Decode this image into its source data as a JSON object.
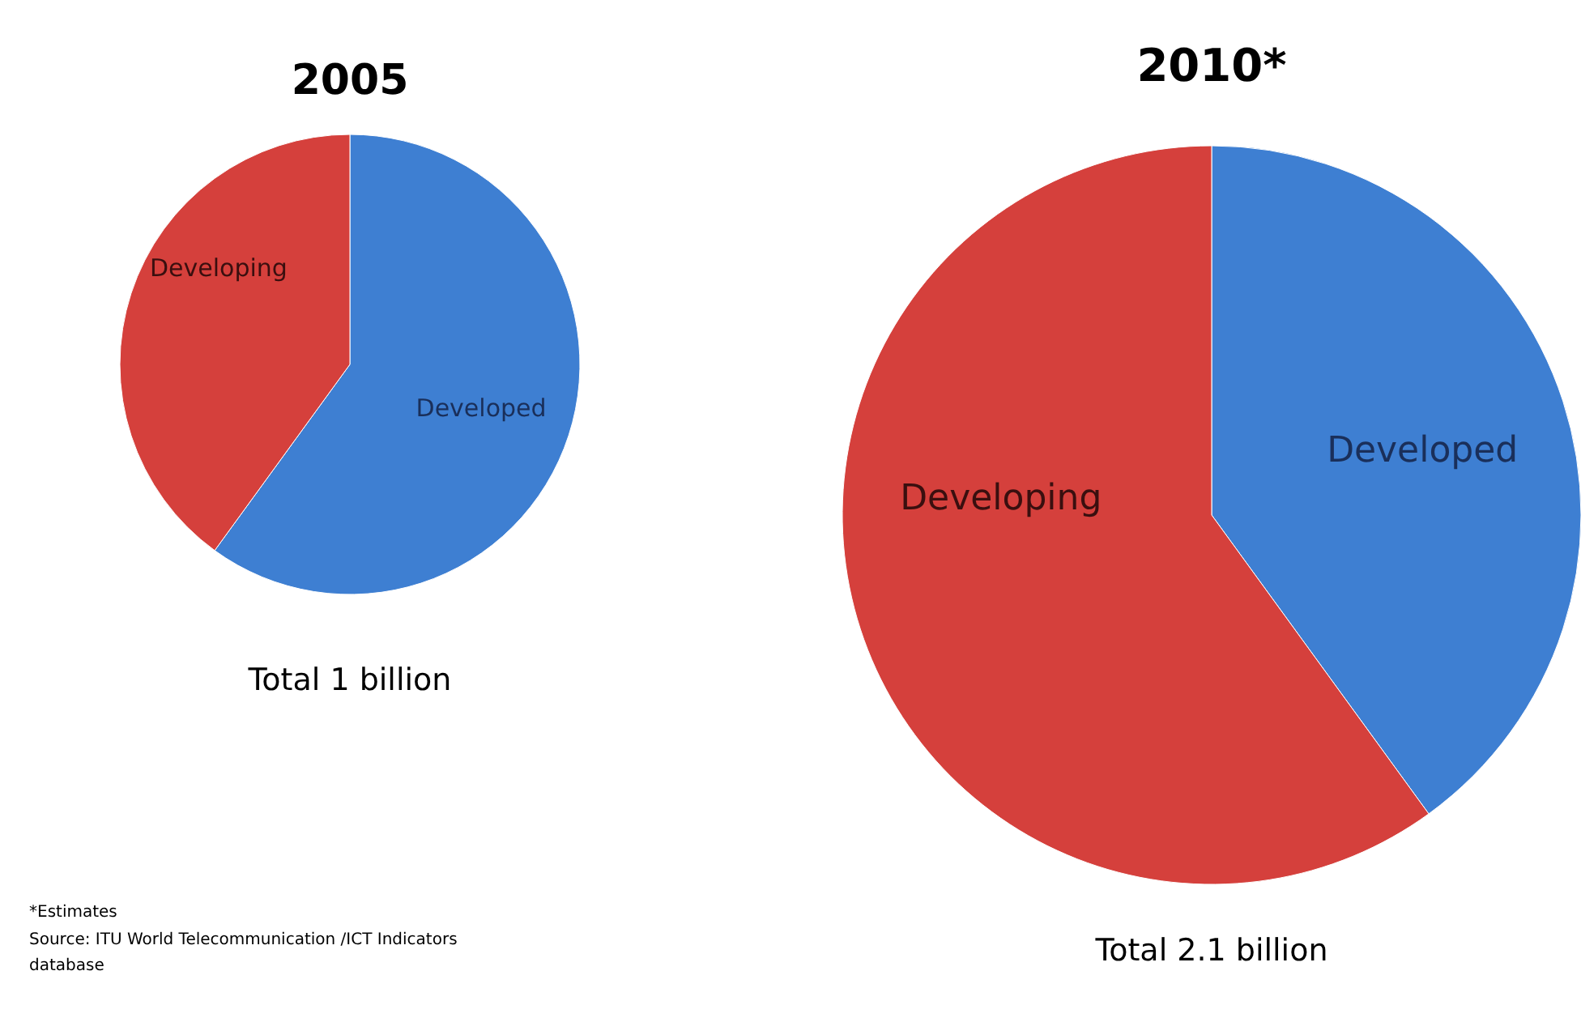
{
  "chart_data": [
    {
      "type": "pie",
      "title": "2005",
      "categories": [
        "Developed",
        "Developing"
      ],
      "values": [
        60,
        40
      ],
      "colors": [
        "#3e7fd2",
        "#d5403c"
      ],
      "annotations": [
        "Total  1 billion",
        "*Estimates",
        "Source:  ITU World Telecommunication /ICT Indicators database"
      ]
    },
    {
      "type": "pie",
      "title": "2010*",
      "categories": [
        "Developed",
        "Developing"
      ],
      "values": [
        40,
        60
      ],
      "colors": [
        "#3e7fd2",
        "#d5403c"
      ],
      "annotations": [
        "Total  2.1 billion"
      ]
    }
  ]
}
